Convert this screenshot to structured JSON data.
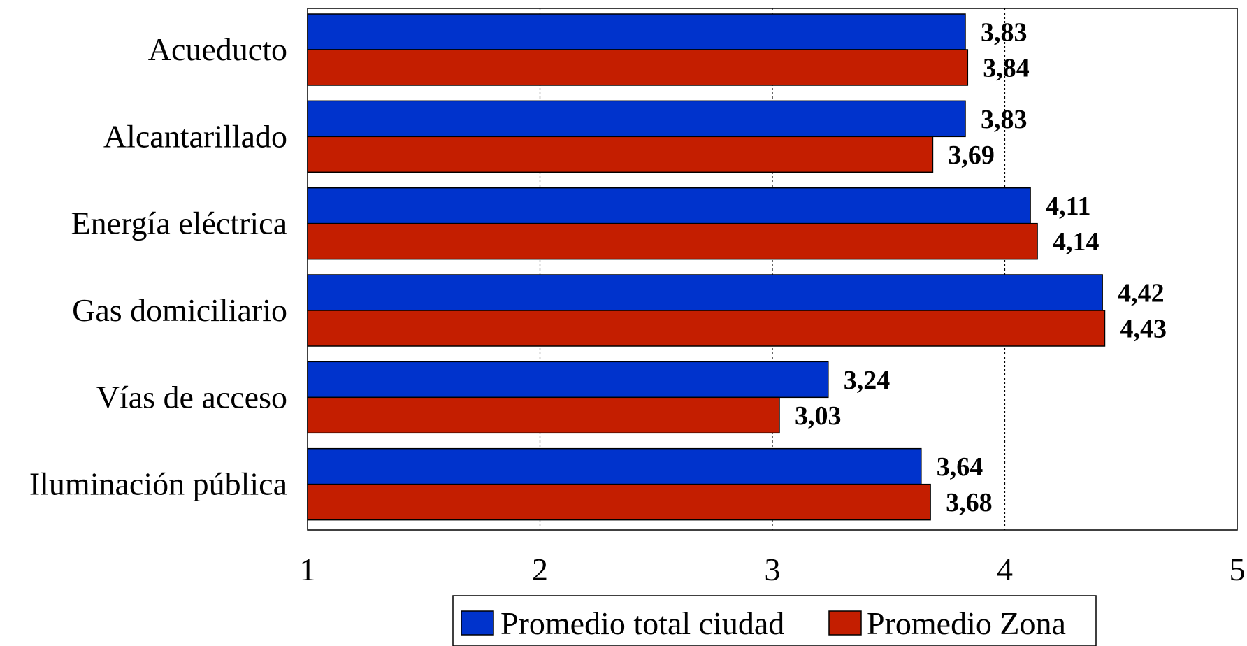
{
  "chart_data": {
    "type": "bar",
    "orientation": "horizontal",
    "categories": [
      "Acueducto",
      "Alcantarillado",
      "Energía eléctrica",
      "Gas domiciliario",
      "Vías de acceso",
      "Iluminación pública"
    ],
    "series": [
      {
        "name": "Promedio total ciudad",
        "color": "#0033cc",
        "values": [
          3.83,
          3.83,
          4.11,
          4.42,
          3.24,
          3.64
        ],
        "labels": [
          "3,83",
          "3,83",
          "4,11",
          "4,42",
          "3,24",
          "3,64"
        ]
      },
      {
        "name": "Promedio Zona",
        "color": "#c41e00",
        "values": [
          3.84,
          3.69,
          4.14,
          4.43,
          3.03,
          3.68
        ],
        "labels": [
          "3,84",
          "3,69",
          "4,14",
          "4,43",
          "3,03",
          "3,68"
        ]
      }
    ],
    "xlim": [
      1,
      5
    ],
    "xticks": [
      "1",
      "2",
      "3",
      "4",
      "5"
    ],
    "grid": "vertical",
    "legend_position": "bottom"
  }
}
